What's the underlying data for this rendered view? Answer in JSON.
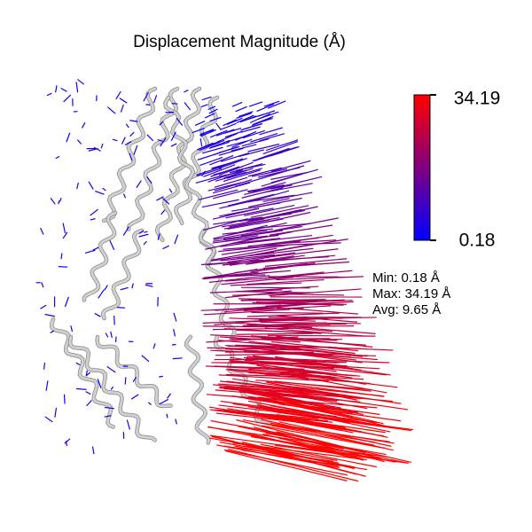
{
  "title": "Displacement Magnitude (Å)",
  "colorbar": {
    "colors": [
      "#0000ff",
      "#ff0000"
    ],
    "range": [
      0.18,
      34.19
    ],
    "ticks": [
      34.19,
      0.18
    ]
  },
  "stats": [
    "Min: 0.18 Å",
    "Max: 34.19 Å",
    "Avg: 9.65 Å"
  ]
}
